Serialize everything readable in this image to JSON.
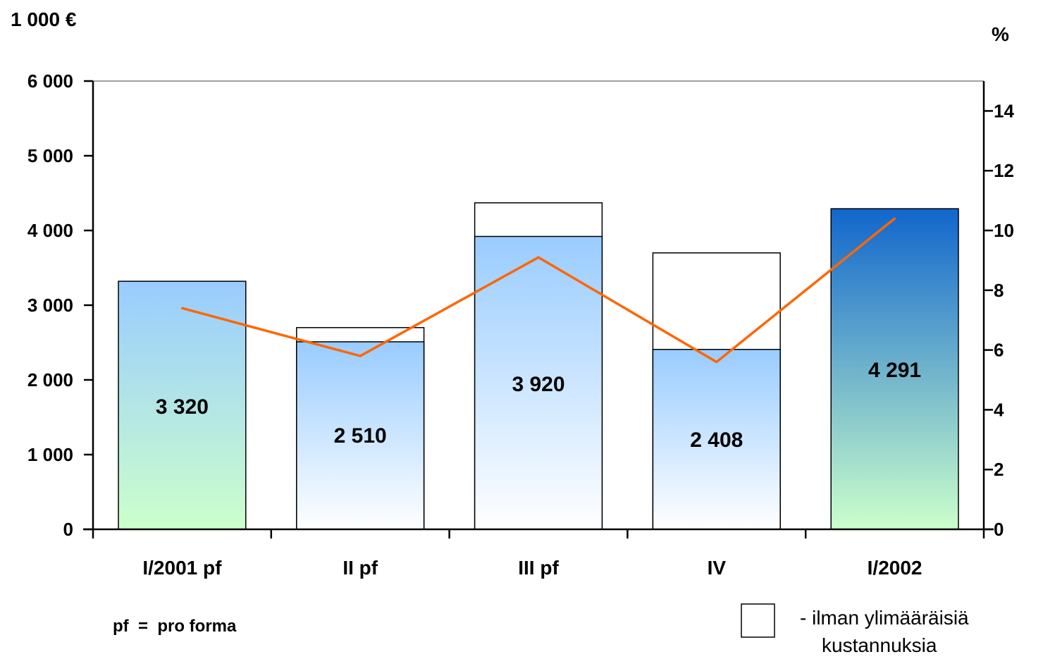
{
  "chart_data": {
    "type": "bar",
    "categories": [
      "I/2001 pf",
      "II pf",
      "III pf",
      "IV",
      "I/2002"
    ],
    "series": [
      {
        "name": "",
        "role": "bar",
        "values": [
          3320,
          2510,
          3920,
          2408,
          4291
        ]
      },
      {
        "name": "- ilman ylimääräisiä kustannuksia",
        "role": "bar-outline",
        "values": [
          null,
          2700,
          4370,
          3700,
          null
        ]
      },
      {
        "name": "",
        "role": "line",
        "axis": "right",
        "values": [
          7.4,
          5.8,
          9.1,
          5.6,
          10.4
        ]
      }
    ],
    "bar_labels": [
      "3 320",
      "2 510",
      "3 920",
      "2 408",
      "4 291"
    ],
    "y_left": {
      "label": "1 000 €",
      "range": [
        0,
        6000
      ],
      "ticks": [
        0,
        1000,
        2000,
        3000,
        4000,
        5000,
        6000
      ],
      "tick_labels": [
        "0",
        "1 000",
        "2 000",
        "3 000",
        "4 000",
        "5 000",
        "6 000"
      ]
    },
    "y_right": {
      "label": "%",
      "range": [
        0,
        15
      ],
      "ticks": [
        0,
        2,
        4,
        6,
        8,
        10,
        12,
        14
      ],
      "tick_labels": [
        "0",
        "2",
        "4",
        "6",
        "8",
        "10",
        "12",
        "14"
      ]
    },
    "grid": false,
    "legend": {
      "placement": "bottom-right",
      "items": [
        "- ilman ylimääräisiä",
        "kustannuksia"
      ]
    },
    "note": "pf  =  pro forma",
    "colors": {
      "blue_gradient_top": "#99ccff",
      "blue_gradient_bottom": "#ffffff",
      "green_gradient_top": "#99ccff",
      "green_gradient_bottom": "#ccffcc",
      "dark_gradient_top": "#1166cc",
      "dark_gradient_bottom": "#ccffcc",
      "line": "#ff6600"
    }
  }
}
